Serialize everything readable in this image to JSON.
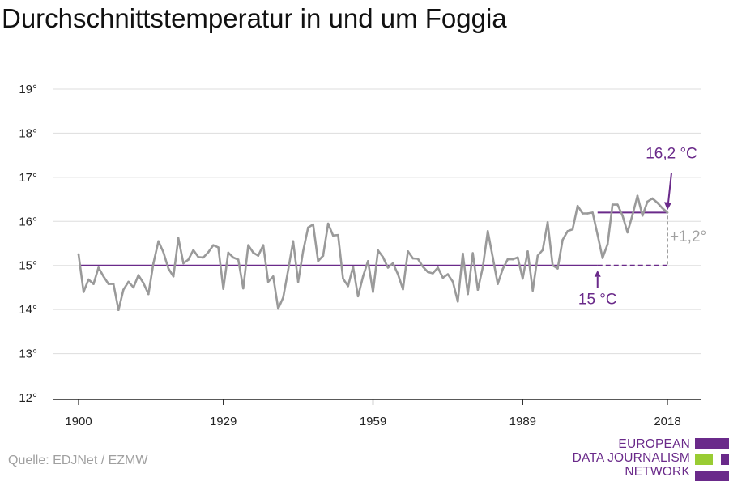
{
  "title": "Durchschnittstemperatur in und um Foggia",
  "source": "Quelle: EDJNet / EZMW",
  "logo": {
    "lines": [
      "EUROPEAN",
      "DATA JOURNALISM",
      "NETWORK"
    ],
    "colors": {
      "purple": "#6a2a8a",
      "green": "#99cc33"
    }
  },
  "colors": {
    "series": "#9a9a9a",
    "reference": "#6a2a8a",
    "axis": "#222222",
    "grid": "#dddddd",
    "delta": "#a0a0a0"
  },
  "chart_data": {
    "type": "line",
    "title": "Durchschnittstemperatur in und um Foggia",
    "xlabel": "",
    "ylabel": "",
    "xlim": [
      1900,
      2018
    ],
    "ylim": [
      12,
      19
    ],
    "x_ticks": [
      {
        "value": 1900,
        "label": "1900"
      },
      {
        "value": 1929,
        "label": "1929"
      },
      {
        "value": 1959,
        "label": "1959"
      },
      {
        "value": 1989,
        "label": "1989"
      },
      {
        "value": 2018,
        "label": "2018"
      }
    ],
    "y_ticks": [
      {
        "value": 12,
        "label": "12°"
      },
      {
        "value": 13,
        "label": "13°"
      },
      {
        "value": 14,
        "label": "14°"
      },
      {
        "value": 15,
        "label": "15°"
      },
      {
        "value": 16,
        "label": "16°"
      },
      {
        "value": 17,
        "label": "17°"
      },
      {
        "value": 18,
        "label": "18°"
      },
      {
        "value": 19,
        "label": "19°"
      }
    ],
    "grid": true,
    "series": [
      {
        "x": [
          1900,
          1901,
          1902,
          1903,
          1904,
          1905,
          1906,
          1907,
          1908,
          1909,
          1910,
          1911,
          1912,
          1913,
          1914,
          1915,
          1916,
          1917,
          1918,
          1919,
          1920,
          1921,
          1922,
          1923,
          1924,
          1925,
          1926,
          1927,
          1928,
          1929,
          1930,
          1931,
          1932,
          1933,
          1934,
          1935,
          1936,
          1937,
          1938,
          1939,
          1940,
          1941,
          1942,
          1943,
          1944,
          1945,
          1946,
          1947,
          1948,
          1949,
          1950,
          1951,
          1952,
          1953,
          1954,
          1955,
          1956,
          1957,
          1958,
          1959,
          1960,
          1961,
          1962,
          1963,
          1964,
          1965,
          1966,
          1967,
          1968,
          1969,
          1970,
          1971,
          1972,
          1973,
          1974,
          1975,
          1976,
          1977,
          1978,
          1979,
          1980,
          1981,
          1982,
          1983,
          1984,
          1985,
          1986,
          1987,
          1988,
          1989,
          1990,
          1991,
          1992,
          1993,
          1994,
          1995,
          1996,
          1997,
          1998,
          1999,
          2000,
          2001,
          2002,
          2003,
          2004,
          2005,
          2006,
          2007,
          2008,
          2009,
          2010,
          2011,
          2012,
          2013,
          2014,
          2015,
          2016,
          2017,
          2018
        ],
        "values": [
          15.25,
          14.4,
          14.68,
          14.58,
          14.95,
          14.75,
          14.58,
          14.58,
          13.99,
          14.45,
          14.63,
          14.5,
          14.78,
          14.6,
          14.35,
          15.05,
          15.55,
          15.3,
          14.93,
          14.75,
          15.62,
          15.05,
          15.13,
          15.35,
          15.19,
          15.18,
          15.3,
          15.46,
          15.41,
          14.47,
          15.29,
          15.18,
          15.13,
          14.48,
          15.46,
          15.29,
          15.22,
          15.46,
          14.63,
          14.75,
          14.02,
          14.27,
          14.9,
          15.55,
          14.63,
          15.32,
          15.86,
          15.93,
          15.1,
          15.22,
          15.95,
          15.68,
          15.69,
          14.7,
          14.53,
          14.97,
          14.3,
          14.75,
          15.1,
          14.4,
          15.34,
          15.19,
          14.95,
          15.05,
          14.8,
          14.46,
          15.32,
          15.16,
          15.15,
          14.97,
          14.85,
          14.82,
          14.95,
          14.72,
          14.8,
          14.63,
          14.18,
          15.27,
          14.35,
          15.28,
          14.45,
          14.95,
          15.78,
          15.18,
          14.58,
          14.92,
          15.14,
          15.14,
          15.18,
          14.7,
          15.32,
          14.43,
          15.22,
          15.35,
          15.98,
          15.0,
          14.93,
          15.58,
          15.78,
          15.82,
          16.35,
          16.18,
          16.18,
          16.2,
          15.7,
          15.17,
          15.48,
          16.38,
          16.38,
          16.13,
          15.75,
          16.15,
          16.58,
          16.13,
          16.45,
          16.52,
          16.42,
          16.3,
          16.2
        ]
      }
    ],
    "annotations": {
      "baseline": {
        "value": 15,
        "from": 1900,
        "to": 2018,
        "solid_until": 2004,
        "label": "15 °C"
      },
      "recent": {
        "value": 16.2,
        "from": 2004,
        "to": 2018,
        "label": "16,2 °C"
      },
      "delta": {
        "label": "+1,2°"
      }
    }
  }
}
